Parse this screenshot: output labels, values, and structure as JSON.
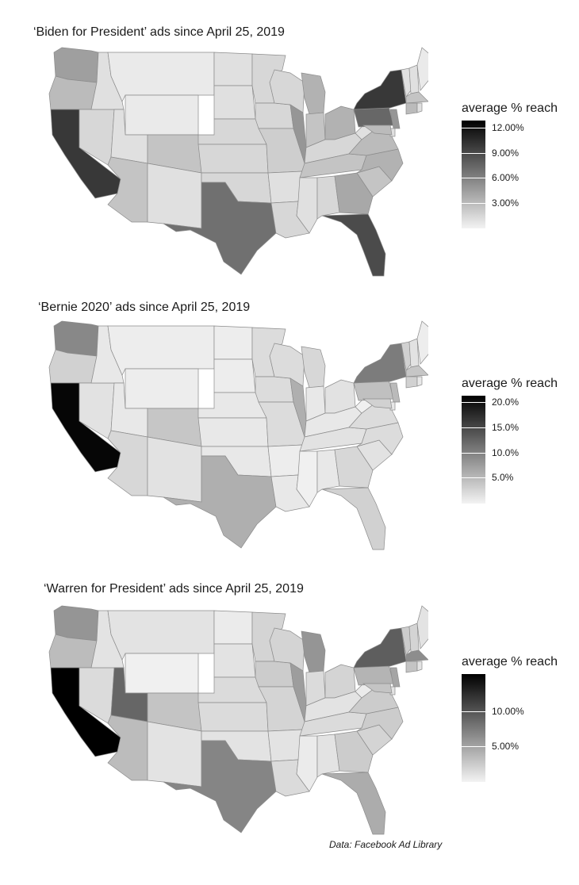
{
  "footer": "Data: Facebook Ad Library",
  "chart_data": [
    {
      "type": "heatmap",
      "title": "‘Biden for President’ ads since April 25, 2019",
      "legend": {
        "title": "average % reach",
        "max": 13.0,
        "ticks": [
          "12.00%",
          "9.00%",
          "6.00%",
          "3.00%"
        ],
        "tick_values": [
          12,
          9,
          6,
          3
        ],
        "placement": "right"
      },
      "values": {
        "WA": 4.5,
        "OR": 3.0,
        "CA": 10.0,
        "NV": 1.5,
        "ID": 1.0,
        "MT": 0.5,
        "WY": 0.5,
        "UT": 1.0,
        "AZ": 2.5,
        "CO": 2.5,
        "NM": 1.0,
        "ND": 1.0,
        "SD": 1.0,
        "NE": 1.5,
        "KS": 1.5,
        "OK": 1.5,
        "TX": 7.0,
        "MN": 1.5,
        "IA": 1.5,
        "MO": 2.0,
        "AR": 1.0,
        "LA": 1.5,
        "WI": 1.5,
        "IL": 5.0,
        "MI": 3.5,
        "IN": 2.5,
        "OH": 3.5,
        "KY": 1.5,
        "TN": 2.5,
        "MS": 1.0,
        "AL": 1.5,
        "GA": 4.0,
        "FL": 9.0,
        "SC": 2.5,
        "NC": 3.5,
        "VA": 3.0,
        "WV": 1.0,
        "PA": 7.5,
        "NY": 10.0,
        "VT": 1.0,
        "NH": 1.0,
        "ME": 0.5,
        "MA": 2.5,
        "CT": 3.0,
        "RI": 1.0,
        "NJ": 5.0,
        "DE": 1.0,
        "MD": 3.0
      }
    },
    {
      "type": "heatmap",
      "title": "‘Bernie 2020’ ads since April 25, 2019",
      "legend": {
        "title": "average % reach",
        "max": 21.5,
        "ticks": [
          "20.0%",
          "15.0%",
          "10.0%",
          "5.0%"
        ],
        "tick_values": [
          20,
          15,
          10,
          5
        ],
        "placement": "right"
      },
      "values": {
        "WA": 9.5,
        "OR": 3.0,
        "CA": 21.0,
        "NV": 1.5,
        "ID": 1.0,
        "MT": 0.5,
        "WY": 0.5,
        "UT": 1.0,
        "AZ": 2.5,
        "CO": 4.0,
        "NM": 1.5,
        "ND": 0.5,
        "SD": 0.5,
        "NE": 1.0,
        "KS": 1.0,
        "OK": 1.0,
        "TX": 6.0,
        "MN": 2.0,
        "IA": 2.0,
        "MO": 2.0,
        "AR": 0.5,
        "LA": 1.0,
        "WI": 2.0,
        "IL": 6.0,
        "MI": 2.5,
        "IN": 1.0,
        "OH": 1.5,
        "KY": 1.0,
        "TN": 1.5,
        "MS": 0.3,
        "AL": 1.0,
        "GA": 2.5,
        "FL": 3.0,
        "SC": 1.5,
        "NC": 2.0,
        "VA": 2.0,
        "WV": 0.3,
        "PA": 4.5,
        "NY": 10.5,
        "VT": 3.0,
        "NH": 1.5,
        "ME": 0.5,
        "MA": 4.0,
        "CT": 3.0,
        "RI": 1.0,
        "NJ": 5.0,
        "DE": 1.0,
        "MD": 3.0
      }
    },
    {
      "type": "heatmap",
      "title": "‘Warren for President’ ads since April 25, 2019",
      "legend": {
        "title": "average % reach",
        "max": 15.5,
        "ticks": [
          "10.00%",
          "5.00%"
        ],
        "tick_values": [
          10,
          5
        ],
        "placement": "right"
      },
      "values": {
        "WA": 6.0,
        "OR": 3.5,
        "CA": 15.5,
        "NV": 1.5,
        "ID": 1.0,
        "MT": 1.0,
        "WY": 0.2,
        "UT": 9.0,
        "AZ": 3.5,
        "CO": 3.0,
        "NM": 1.0,
        "ND": 0.5,
        "SD": 1.0,
        "NE": 1.5,
        "KS": 1.5,
        "OK": 1.0,
        "TX": 7.0,
        "MN": 2.0,
        "IA": 2.5,
        "MO": 2.0,
        "AR": 1.0,
        "LA": 1.5,
        "WI": 2.0,
        "IL": 5.5,
        "MI": 6.0,
        "IN": 1.5,
        "OH": 2.0,
        "KY": 1.0,
        "TN": 1.5,
        "MS": 0.5,
        "AL": 1.0,
        "GA": 2.5,
        "FL": 4.5,
        "SC": 2.0,
        "NC": 2.5,
        "VA": 2.5,
        "WV": 0.5,
        "PA": 4.0,
        "NY": 9.5,
        "VT": 2.5,
        "NH": 2.0,
        "ME": 1.0,
        "MA": 6.5,
        "CT": 3.0,
        "RI": 1.0,
        "NJ": 5.0,
        "DE": 1.0,
        "MD": 3.0
      }
    }
  ]
}
